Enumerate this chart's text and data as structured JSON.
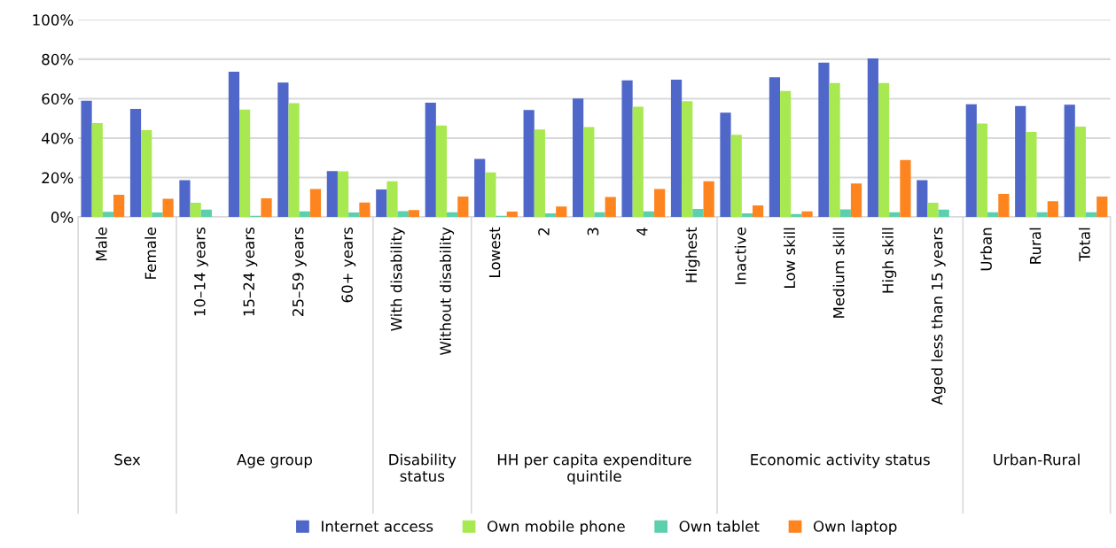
{
  "chart_data": {
    "type": "bar",
    "categories": [
      "Male",
      "Female",
      "10–14 years",
      "15–24 years",
      "25–59 years",
      "60+ years",
      "With disability",
      "Without disability",
      "Lowest",
      "2",
      "3",
      "4",
      "Highest",
      "Inactive",
      "Low skill",
      "Medium skill",
      "High skill",
      "Aged less than 15 years",
      "Urban",
      "Rural",
      "Total"
    ],
    "series": [
      {
        "name": "Internet access",
        "color": "#4f67c9",
        "values": [
          58.9,
          54.8,
          18.7,
          73.6,
          68.2,
          23.3,
          14.0,
          58.0,
          29.4,
          54.2,
          60.1,
          69.3,
          69.6,
          52.9,
          70.8,
          78.2,
          80.4,
          18.7,
          57.2,
          56.3,
          56.9
        ]
      },
      {
        "name": "Own mobile phone",
        "color": "#a8e952",
        "values": [
          47.6,
          44.0,
          7.2,
          54.5,
          57.7,
          23.2,
          18.1,
          46.4,
          22.6,
          44.4,
          45.6,
          55.9,
          58.7,
          41.7,
          63.9,
          67.9,
          67.9,
          7.2,
          47.4,
          43.1,
          45.8
        ]
      },
      {
        "name": "Own tablet",
        "color": "#5ccfac",
        "values": [
          2.6,
          2.3,
          3.8,
          0.6,
          2.9,
          2.3,
          3.0,
          2.4,
          0.6,
          1.8,
          2.4,
          2.9,
          4.1,
          1.8,
          1.5,
          3.9,
          2.4,
          3.8,
          2.4,
          2.4,
          2.4
        ]
      },
      {
        "name": "Own laptop",
        "color": "#fe8420",
        "values": [
          11.3,
          9.3,
          null,
          9.5,
          14.2,
          7.4,
          3.5,
          10.4,
          2.7,
          5.3,
          10.1,
          14.2,
          18.1,
          5.9,
          2.9,
          17.0,
          28.9,
          null,
          11.7,
          8.0,
          10.4
        ]
      }
    ],
    "ylim": [
      0,
      100
    ],
    "yticks": [
      {
        "value": 0,
        "label": "0%"
      },
      {
        "value": 20,
        "label": "20%"
      },
      {
        "value": 40,
        "label": "40%"
      },
      {
        "value": 60,
        "label": "60%"
      },
      {
        "value": 80,
        "label": "80%"
      },
      {
        "value": 100,
        "label": "100%"
      }
    ],
    "grid": "y",
    "legend": "bottom",
    "annotations": [
      "Sex",
      "Age group",
      "Disability status",
      "HH per capita expenditure quintile",
      "Economic activity status",
      "Urban-Rural"
    ]
  }
}
